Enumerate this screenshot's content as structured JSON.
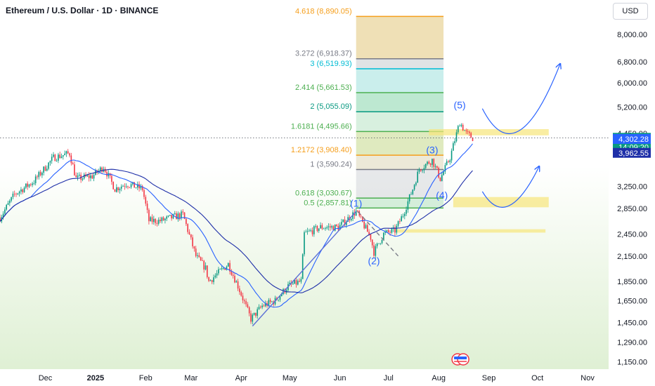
{
  "header": {
    "title": "Ethereum / U.S. Dollar · 1D · BINANCE",
    "currency": "USD"
  },
  "colors": {
    "up": "#089981",
    "down": "#f23645",
    "ma_fast": "#2962ff",
    "ma_slow": "#1e2fa8",
    "background_top": "#ffffff",
    "background_bottom": "#dff0d4",
    "zone": "#f7e67a",
    "wave": "#2962ff"
  },
  "chart_data": {
    "type": "candlestick",
    "symbol": "Ethereum / U.S. Dollar",
    "interval": "1D",
    "exchange": "BINANCE",
    "y_scale": "log",
    "ylim": [
      1100,
      9800
    ],
    "y_ticks": [
      "8,000.00",
      "6,800.00",
      "6,000.00",
      "5,200.00",
      "4,450.00",
      "3,250.00",
      "2,850.00",
      "2,450.00",
      "2,150.00",
      "1,850.00",
      "1,650.00",
      "1,450.00",
      "1,290.00",
      "1,150.00"
    ],
    "x_ticks": [
      {
        "label": "Dec",
        "date": "2024-12-01"
      },
      {
        "label": "2025",
        "date": "2025-01-01",
        "bold": true
      },
      {
        "label": "Feb",
        "date": "2025-02-01"
      },
      {
        "label": "Mar",
        "date": "2025-03-01"
      },
      {
        "label": "Apr",
        "date": "2025-04-01"
      },
      {
        "label": "May",
        "date": "2025-05-01"
      },
      {
        "label": "Jun",
        "date": "2025-06-01"
      },
      {
        "label": "Jul",
        "date": "2025-07-01"
      },
      {
        "label": "Aug",
        "date": "2025-08-01"
      },
      {
        "label": "Sep",
        "date": "2025-09-01"
      },
      {
        "label": "Oct",
        "date": "2025-10-01"
      },
      {
        "label": "Nov",
        "date": "2025-11-01"
      }
    ],
    "x_range": [
      "2024-11-03",
      "2025-11-14"
    ],
    "price_path": [
      [
        "2024-11-03",
        2700
      ],
      [
        "2024-11-12",
        3100
      ],
      [
        "2024-11-24",
        3350
      ],
      [
        "2024-12-06",
        3850
      ],
      [
        "2024-12-16",
        3950
      ],
      [
        "2024-12-20",
        3400
      ],
      [
        "2024-12-30",
        3450
      ],
      [
        "2025-01-06",
        3650
      ],
      [
        "2025-01-13",
        3200
      ],
      [
        "2025-01-20",
        3300
      ],
      [
        "2025-01-30",
        3200
      ],
      [
        "2025-02-03",
        2650
      ],
      [
        "2025-02-10",
        2650
      ],
      [
        "2025-02-24",
        2750
      ],
      [
        "2025-03-04",
        2150
      ],
      [
        "2025-03-10",
        2000
      ],
      [
        "2025-03-12",
        1850
      ],
      [
        "2025-03-24",
        2050
      ],
      [
        "2025-03-30",
        1800
      ],
      [
        "2025-04-07",
        1480
      ],
      [
        "2025-04-14",
        1600
      ],
      [
        "2025-04-22",
        1650
      ],
      [
        "2025-04-30",
        1800
      ],
      [
        "2025-05-08",
        1850
      ],
      [
        "2025-05-10",
        2450
      ],
      [
        "2025-05-20",
        2550
      ],
      [
        "2025-05-31",
        2550
      ],
      [
        "2025-06-11",
        2800
      ],
      [
        "2025-06-20",
        2400
      ],
      [
        "2025-06-22",
        2200
      ],
      [
        "2025-06-28",
        2450
      ],
      [
        "2025-07-05",
        2500
      ],
      [
        "2025-07-10",
        2750
      ],
      [
        "2025-07-16",
        3200
      ],
      [
        "2025-07-20",
        3600
      ],
      [
        "2025-07-28",
        3800
      ],
      [
        "2025-08-02",
        3400
      ],
      [
        "2025-08-08",
        3850
      ],
      [
        "2025-08-14",
        4750
      ],
      [
        "2025-08-18",
        4450
      ],
      [
        "2025-08-22",
        4331
      ]
    ],
    "moving_averages": [
      {
        "name": "",
        "color": "#2962ff",
        "period": 20
      },
      {
        "name": "",
        "color": "#1e2fa8",
        "period": 50
      }
    ],
    "price_tags": [
      {
        "value": 4331.29,
        "label": "4,331.29",
        "sub": "14:09:20",
        "color": "#089981"
      },
      {
        "value": 4302.28,
        "label": "4,302.28",
        "color": "#2962ff"
      },
      {
        "value": 3962.55,
        "label": "3,962.55",
        "color": "#1e2fa8"
      }
    ],
    "current_price": 4331.29,
    "countdown": "14:09:20",
    "fibonacci": {
      "start_date": "2025-06-11",
      "end_date": "2025-08-04",
      "levels": [
        {
          "ratio": "4.618",
          "price": 8890.05,
          "label": "4.618 (8,890.05)",
          "color": "#f59e1b"
        },
        {
          "ratio": "3.272",
          "price": 6918.37,
          "label": "3.272 (6,918.37)",
          "color": "#787b86"
        },
        {
          "ratio": "3",
          "price": 6519.93,
          "label": "3 (6,519.93)",
          "color": "#00bcd4"
        },
        {
          "ratio": "2.414",
          "price": 5661.53,
          "label": "2.414 (5,661.53)",
          "color": "#4caf50"
        },
        {
          "ratio": "2",
          "price": 5055.09,
          "label": "2 (5,055.09)",
          "color": "#089981"
        },
        {
          "ratio": "1.6181",
          "price": 4495.66,
          "label": "1.6181 (4,495.66)",
          "color": "#4caf50"
        },
        {
          "ratio": "1.2172",
          "price": 3908.4,
          "label": "1.2172 (3,908.40)",
          "color": "#f59e1b"
        },
        {
          "ratio": "1",
          "price": 3590.24,
          "label": "1 (3,590.24)",
          "color": "#787b86"
        },
        {
          "ratio": "0.618",
          "price": 3030.67,
          "label": "0.618 (3,030.67)",
          "color": "#4caf50"
        },
        {
          "ratio": "0.5",
          "price": 2857.81,
          "label": "0.5 (2,857.81)",
          "color": "#4caf50"
        }
      ],
      "fills": [
        {
          "from": 8890.05,
          "to": 6918.37,
          "color": "#e2c77a"
        },
        {
          "from": 6918.37,
          "to": 6519.93,
          "color": "#c9ccd0"
        },
        {
          "from": 6519.93,
          "to": 5661.53,
          "color": "#9fe0dc"
        },
        {
          "from": 5661.53,
          "to": 5055.09,
          "color": "#86d6ab"
        },
        {
          "from": 5055.09,
          "to": 4495.66,
          "color": "#b8e3c4"
        },
        {
          "from": 4495.66,
          "to": 3908.4,
          "color": "#c4d88a"
        },
        {
          "from": 3908.4,
          "to": 3590.24,
          "color": "#ddd7b8"
        },
        {
          "from": 3590.24,
          "to": 3030.67,
          "color": "#d3d6da"
        },
        {
          "from": 3030.67,
          "to": 2857.81,
          "color": "#b7e2c2"
        }
      ]
    },
    "zones": [
      {
        "from_date": "2025-07-26",
        "to_date": "2025-10-08",
        "low": 4395,
        "high": 4560
      },
      {
        "from_date": "2025-08-10",
        "to_date": "2025-10-08",
        "low": 2870,
        "high": 3050
      },
      {
        "from_date": "2025-07-06",
        "to_date": "2025-10-06",
        "low": 2470,
        "high": 2520
      }
    ],
    "waves": [
      {
        "label": "(1)",
        "date": "2025-06-11",
        "price": 2880
      },
      {
        "label": "(2)",
        "date": "2025-06-22",
        "price": 2050
      },
      {
        "label": "(3)",
        "date": "2025-07-28",
        "price": 3950
      },
      {
        "label": "(4)",
        "date": "2025-08-03",
        "price": 3020
      },
      {
        "label": "(5)",
        "date": "2025-08-14",
        "price": 5150
      }
    ],
    "trendlines": [
      {
        "style": "dashed",
        "points": [
          [
            "2025-06-12",
            2800
          ],
          [
            "2025-07-07",
            2150
          ]
        ],
        "color": "#787b86"
      },
      {
        "style": "solid",
        "points": [
          [
            "2025-04-08",
            1420
          ],
          [
            "2025-06-11",
            2800
          ]
        ],
        "color": "#5b6fd6"
      }
    ],
    "projections": [
      {
        "points": [
          [
            "2025-08-28",
            5150
          ],
          [
            "2025-09-18",
            4450
          ],
          [
            "2025-10-15",
            6700
          ]
        ],
        "color": "#2962ff"
      },
      {
        "points": [
          [
            "2025-08-28",
            3150
          ],
          [
            "2025-09-12",
            2870
          ],
          [
            "2025-10-02",
            3650
          ]
        ],
        "color": "#2962ff"
      }
    ],
    "events": [
      {
        "type": "economic-calendar",
        "date": "2025-08-14"
      }
    ]
  }
}
